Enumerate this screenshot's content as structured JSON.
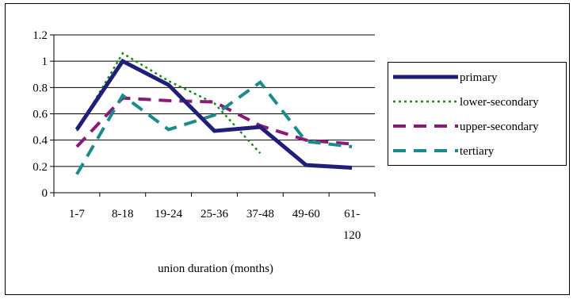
{
  "chart_data": {
    "type": "line",
    "title": "",
    "xlabel": "union duration (months)",
    "ylabel": "",
    "categories": [
      "1-7",
      "8-18",
      "19-24",
      "25-36",
      "37-48",
      "49-60",
      "61-120"
    ],
    "category_labels": [
      [
        "1-7"
      ],
      [
        "8-18"
      ],
      [
        "19-24"
      ],
      [
        "25-36"
      ],
      [
        "37-48"
      ],
      [
        "49-60"
      ],
      [
        "61-",
        "120"
      ]
    ],
    "yticks": [
      "0",
      "0.2",
      "0.4",
      "0.6",
      "0.8",
      "1",
      "1.2"
    ],
    "ylim": [
      0,
      1.2
    ],
    "grid": true,
    "legend_position": "right",
    "series": [
      {
        "name": "primary",
        "values": [
          0.48,
          1.0,
          0.82,
          0.47,
          0.5,
          0.21,
          0.19
        ],
        "color": "#1f1f7a",
        "style": "solid-thick"
      },
      {
        "name": "lower-secondary",
        "values": [
          0.47,
          1.06,
          0.85,
          0.68,
          0.3,
          null,
          null
        ],
        "color": "#1a8a1a",
        "style": "dotted"
      },
      {
        "name": "upper-secondary",
        "values": [
          0.35,
          0.72,
          0.7,
          0.69,
          0.51,
          0.4,
          0.37
        ],
        "color": "#8a1a7a",
        "style": "dashed"
      },
      {
        "name": "tertiary",
        "values": [
          0.14,
          0.74,
          0.48,
          0.59,
          0.84,
          0.39,
          0.35
        ],
        "color": "#1a8a8a",
        "style": "dashed"
      }
    ]
  }
}
